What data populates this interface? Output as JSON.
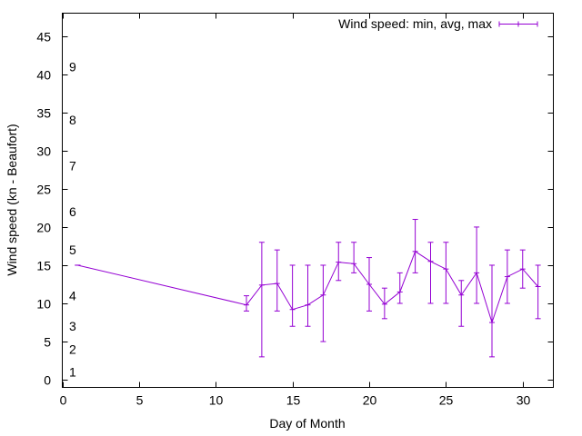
{
  "chart_data": {
    "type": "line",
    "title": "",
    "xlabel": "Day of Month",
    "ylabel": "Wind speed (kn - Beaufort)",
    "xlim": [
      0,
      32
    ],
    "ylim": [
      -1,
      48
    ],
    "xticks": [
      0,
      5,
      10,
      15,
      20,
      25,
      30
    ],
    "yticks": [
      0,
      5,
      10,
      15,
      20,
      25,
      30,
      35,
      40,
      45
    ],
    "grid": false,
    "legend_position": "top-right",
    "beaufort_labels": [
      {
        "label": "1",
        "y": 1
      },
      {
        "label": "2",
        "y": 4
      },
      {
        "label": "3",
        "y": 7
      },
      {
        "label": "4",
        "y": 11
      },
      {
        "label": "5",
        "y": 17
      },
      {
        "label": "6",
        "y": 22
      },
      {
        "label": "7",
        "y": 28
      },
      {
        "label": "8",
        "y": 34
      },
      {
        "label": "9",
        "y": 41
      }
    ],
    "series": [
      {
        "name": "Wind speed: min, avg, max",
        "color": "#9400d3",
        "points": [
          {
            "x": 1,
            "avg": 15,
            "min": 15,
            "max": 15
          },
          {
            "x": 12,
            "avg": 9.8,
            "min": 9,
            "max": 11
          },
          {
            "x": 13,
            "avg": 12.4,
            "min": 3,
            "max": 18
          },
          {
            "x": 14,
            "avg": 12.6,
            "min": 9,
            "max": 17
          },
          {
            "x": 15,
            "avg": 9.2,
            "min": 7,
            "max": 15
          },
          {
            "x": 16,
            "avg": 9.8,
            "min": 7,
            "max": 15
          },
          {
            "x": 17,
            "avg": 11.1,
            "min": 5,
            "max": 15
          },
          {
            "x": 18,
            "avg": 15.4,
            "min": 13,
            "max": 18
          },
          {
            "x": 19,
            "avg": 15.2,
            "min": 14,
            "max": 18
          },
          {
            "x": 20,
            "avg": 12.5,
            "min": 9,
            "max": 16
          },
          {
            "x": 21,
            "avg": 9.9,
            "min": 8,
            "max": 12
          },
          {
            "x": 22,
            "avg": 11.5,
            "min": 10,
            "max": 14
          },
          {
            "x": 23,
            "avg": 16.8,
            "min": 14,
            "max": 21
          },
          {
            "x": 24,
            "avg": 15.5,
            "min": 10,
            "max": 18
          },
          {
            "x": 25,
            "avg": 14.5,
            "min": 10,
            "max": 18
          },
          {
            "x": 26,
            "avg": 11.1,
            "min": 7,
            "max": 13
          },
          {
            "x": 27,
            "avg": 14,
            "min": 10,
            "max": 20
          },
          {
            "x": 28,
            "avg": 7.5,
            "min": 3,
            "max": 15
          },
          {
            "x": 29,
            "avg": 13.5,
            "min": 10,
            "max": 17
          },
          {
            "x": 30,
            "avg": 14.5,
            "min": 12,
            "max": 17
          },
          {
            "x": 31,
            "avg": 12.2,
            "min": 8,
            "max": 15
          }
        ]
      }
    ]
  }
}
